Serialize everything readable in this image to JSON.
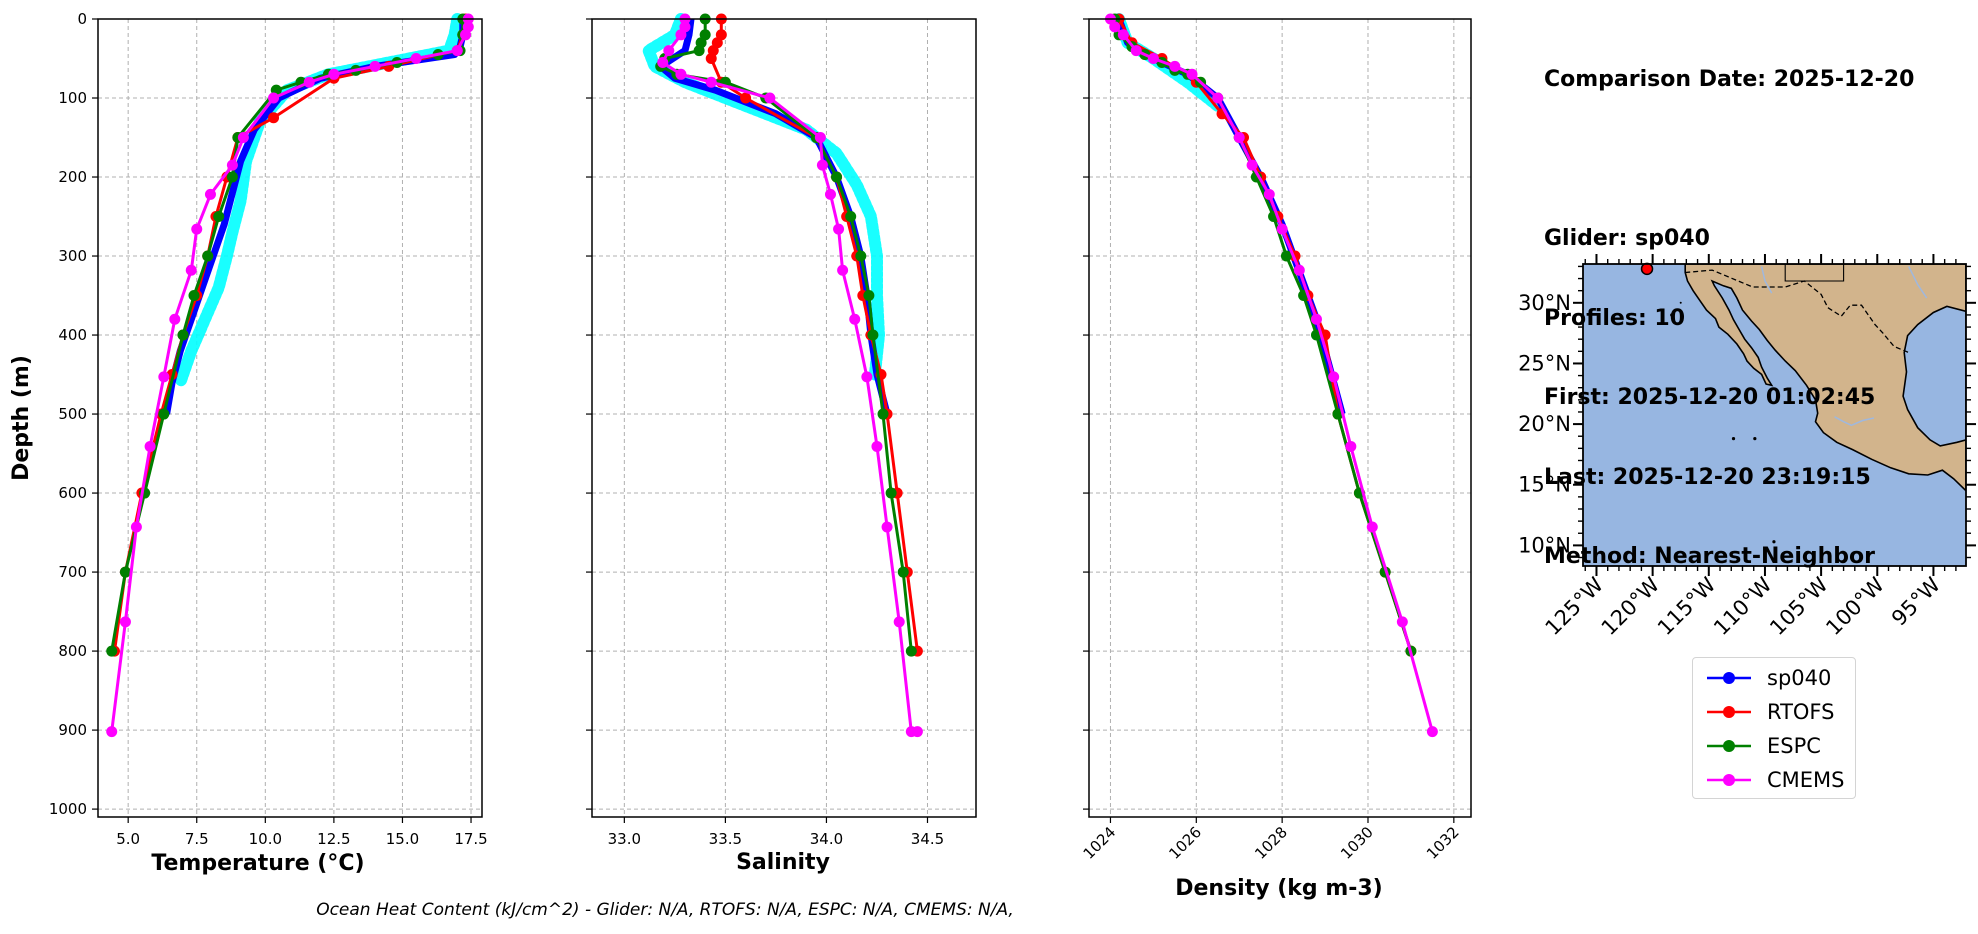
{
  "info": {
    "line1": "Comparison Date: 2025-12-20",
    "line2": "Glider: sp040",
    "line3": "Profiles: 10",
    "line4": "First: 2025-12-20 01:02:45",
    "line5": "Last: 2025-12-20 23:19:15",
    "line6": "Method: Nearest-Neighbor"
  },
  "footer": "Ocean Heat Content (kJ/cm^2) - Glider: N/A,  RTOFS: N/A,  ESPC: N/A,  CMEMS: N/A,",
  "colors": {
    "sp040": "#0000ff",
    "RTOFS": "#ff0000",
    "ESPC": "#008000",
    "CMEMS": "#ff00ff",
    "glider_raw": "#00ffff",
    "ocean": "#97b6e1",
    "land": "#d2b48c"
  },
  "legend": [
    {
      "name": "sp040",
      "color": "#0000ff"
    },
    {
      "name": "RTOFS",
      "color": "#ff0000"
    },
    {
      "name": "ESPC",
      "color": "#008000"
    },
    {
      "name": "CMEMS",
      "color": "#ff00ff"
    }
  ],
  "chart_data": [
    {
      "type": "line",
      "xlabel": "Temperature (°C)",
      "ylabel": "Depth (m)",
      "xlim": [
        3.9,
        17.9
      ],
      "ylim": [
        1010,
        0
      ],
      "xticks": [
        "5.0",
        "7.5",
        "10.0",
        "12.5",
        "15.0",
        "17.5"
      ],
      "yticks": [
        "0",
        "100",
        "200",
        "300",
        "400",
        "500",
        "600",
        "700",
        "800",
        "900",
        "1000"
      ],
      "grid": true,
      "series": [
        {
          "name": "sp040",
          "x": [
            17.2,
            17.2,
            17.1,
            16.9,
            14.0,
            12.0,
            10.5,
            9.6,
            9.1,
            8.8,
            8.5,
            8.1,
            7.7,
            7.3,
            6.9,
            6.6,
            6.4
          ],
          "y": [
            0,
            20,
            35,
            45,
            60,
            75,
            100,
            140,
            180,
            220,
            260,
            300,
            340,
            380,
            420,
            460,
            500
          ]
        },
        {
          "name": "RTOFS",
          "x": [
            17.3,
            17.2,
            17.0,
            14.5,
            12.5,
            10.3,
            9.0,
            8.6,
            8.2,
            7.9,
            7.5,
            7.0,
            6.6,
            6.2,
            5.5,
            4.9,
            4.5
          ],
          "y": [
            0,
            20,
            40,
            60,
            75,
            125,
            150,
            200,
            250,
            300,
            350,
            400,
            450,
            500,
            600,
            700,
            800
          ]
        },
        {
          "name": "ESPC",
          "x": [
            17.2,
            17.2,
            17.1,
            16.3,
            14.8,
            13.3,
            12.3,
            11.3,
            10.4,
            9.0,
            8.8,
            8.3,
            7.9,
            7.4,
            7.0,
            6.3,
            5.6,
            4.9,
            4.4
          ],
          "y": [
            0,
            20,
            40,
            45,
            55,
            65,
            70,
            80,
            90,
            150,
            200,
            250,
            300,
            350,
            400,
            500,
            600,
            700,
            800
          ]
        },
        {
          "name": "CMEMS",
          "x": [
            17.4,
            17.4,
            17.3,
            17.0,
            15.5,
            14.0,
            12.5,
            11.6,
            10.3,
            9.2,
            8.8,
            8.0,
            7.5,
            7.3,
            6.7,
            6.3,
            5.8,
            5.3,
            4.9,
            4.4
          ],
          "y": [
            0,
            10,
            20,
            40,
            50,
            60,
            70,
            80,
            100,
            150,
            185,
            222,
            266,
            318,
            380,
            453,
            541,
            643,
            763,
            902
          ]
        },
        {
          "name": "glider_raw",
          "x": [
            17.0,
            16.9,
            16.7,
            14.5,
            12.3,
            10.8,
            9.8,
            9.3,
            9.1,
            8.8,
            8.6,
            8.3,
            7.8,
            7.3,
            6.9
          ],
          "y": [
            0,
            20,
            40,
            55,
            70,
            90,
            130,
            180,
            230,
            270,
            300,
            340,
            380,
            420,
            460
          ]
        }
      ]
    },
    {
      "type": "line",
      "xlabel": "Salinity",
      "xlim": [
        32.84,
        34.74
      ],
      "ylim": [
        1010,
        0
      ],
      "xticks": [
        "33.0",
        "33.5",
        "34.0",
        "34.5"
      ],
      "grid": true,
      "series": [
        {
          "name": "sp040",
          "x": [
            33.33,
            33.32,
            33.3,
            33.18,
            33.25,
            33.45,
            33.75,
            33.95,
            34.05,
            34.12,
            34.17,
            34.2,
            34.22,
            34.25,
            34.28,
            34.3
          ],
          "y": [
            0,
            20,
            40,
            60,
            75,
            90,
            120,
            150,
            200,
            250,
            300,
            350,
            400,
            450,
            480,
            500
          ]
        },
        {
          "name": "RTOFS",
          "x": [
            33.48,
            33.48,
            33.46,
            33.44,
            33.43,
            33.48,
            33.6,
            33.95,
            34.05,
            34.1,
            34.15,
            34.18,
            34.22,
            34.27,
            34.3,
            34.35,
            34.4,
            34.45
          ],
          "y": [
            0,
            20,
            30,
            40,
            50,
            80,
            100,
            150,
            200,
            250,
            300,
            350,
            400,
            450,
            500,
            600,
            700,
            800
          ]
        },
        {
          "name": "ESPC",
          "x": [
            33.4,
            33.4,
            33.38,
            33.37,
            33.2,
            33.18,
            33.26,
            33.5,
            33.7,
            33.95,
            34.05,
            34.12,
            34.17,
            34.21,
            34.23,
            34.28,
            34.32,
            34.38,
            34.42
          ],
          "y": [
            0,
            20,
            30,
            40,
            50,
            60,
            70,
            80,
            100,
            150,
            200,
            250,
            300,
            350,
            400,
            500,
            600,
            700,
            800
          ]
        },
        {
          "name": "CMEMS",
          "x": [
            33.3,
            33.3,
            33.28,
            33.22,
            33.19,
            33.28,
            33.43,
            33.72,
            33.97,
            33.98,
            34.02,
            34.06,
            34.08,
            34.14,
            34.2,
            34.25,
            34.3,
            34.36,
            34.42,
            34.45
          ],
          "y": [
            0,
            10,
            20,
            40,
            55,
            70,
            80,
            100,
            150,
            185,
            222,
            266,
            318,
            380,
            453,
            541,
            643,
            763,
            902,
            902
          ]
        },
        {
          "name": "glider_raw",
          "x": [
            33.28,
            33.25,
            33.12,
            33.15,
            33.3,
            33.6,
            33.9,
            34.05,
            34.15,
            34.22,
            34.25,
            34.25,
            34.26,
            34.24
          ],
          "y": [
            0,
            20,
            40,
            60,
            80,
            110,
            140,
            170,
            210,
            250,
            300,
            350,
            400,
            450
          ]
        }
      ]
    },
    {
      "type": "line",
      "xlabel": "Density (kg m-3)",
      "xlim": [
        1023.5,
        1032.4
      ],
      "ylim": [
        1010,
        0
      ],
      "xticks": [
        "1024",
        "1026",
        "1028",
        "1030",
        "1032"
      ],
      "grid": true,
      "series": [
        {
          "name": "sp040",
          "x": [
            1024.2,
            1024.4,
            1025.0,
            1025.8,
            1026.5,
            1027.0,
            1027.5,
            1028.0,
            1028.4,
            1028.8,
            1029.1,
            1029.4
          ],
          "y": [
            0,
            30,
            50,
            70,
            100,
            150,
            200,
            260,
            320,
            380,
            440,
            500
          ]
        },
        {
          "name": "RTOFS",
          "x": [
            1024.2,
            1024.5,
            1025.2,
            1026.0,
            1026.6,
            1027.1,
            1027.5,
            1027.9,
            1028.3,
            1028.6,
            1029.0,
            1029.3,
            1029.8,
            1030.4,
            1031.0
          ],
          "y": [
            0,
            30,
            50,
            80,
            120,
            150,
            200,
            250,
            300,
            350,
            400,
            500,
            600,
            700,
            800
          ]
        },
        {
          "name": "ESPC",
          "x": [
            1024.1,
            1024.2,
            1024.5,
            1024.8,
            1025.2,
            1025.5,
            1025.8,
            1026.1,
            1026.5,
            1027.0,
            1027.4,
            1027.8,
            1028.1,
            1028.5,
            1028.8,
            1029.3,
            1029.8,
            1030.4,
            1031.0
          ],
          "y": [
            0,
            20,
            35,
            45,
            55,
            65,
            70,
            80,
            100,
            150,
            200,
            250,
            300,
            350,
            400,
            500,
            600,
            700,
            800
          ]
        },
        {
          "name": "CMEMS",
          "x": [
            1024.0,
            1024.1,
            1024.3,
            1024.6,
            1025.0,
            1025.5,
            1025.9,
            1026.5,
            1027.0,
            1027.3,
            1027.7,
            1028.0,
            1028.4,
            1028.8,
            1029.2,
            1029.6,
            1030.1,
            1030.8,
            1031.5
          ],
          "y": [
            0,
            10,
            20,
            40,
            50,
            60,
            70,
            100,
            150,
            185,
            222,
            266,
            318,
            380,
            453,
            541,
            643,
            763,
            902
          ]
        },
        {
          "name": "glider_raw",
          "x": [
            1024.2,
            1024.4,
            1025.0,
            1025.8,
            1026.5
          ],
          "y": [
            0,
            30,
            50,
            80,
            110
          ]
        }
      ]
    },
    {
      "type": "map",
      "xticks": [
        "125°W",
        "120°W",
        "115°W",
        "110°W",
        "105°W",
        "100°W",
        "95°W"
      ],
      "yticks": [
        "30°N",
        "25°N",
        "20°N",
        "15°N",
        "10°N"
      ],
      "xlim": [
        -126.2,
        -92.1
      ],
      "ylim": [
        8.3,
        33.2
      ],
      "marker": {
        "lon": -120.5,
        "lat": 32.8
      }
    }
  ]
}
